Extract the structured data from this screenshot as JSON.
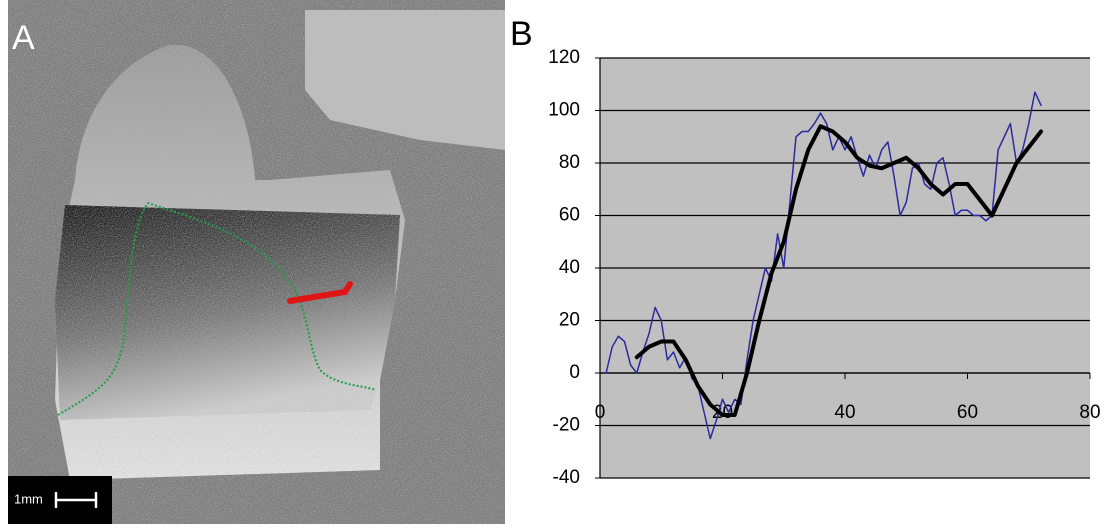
{
  "panel_a": {
    "label": "A",
    "scale_label": "1mm"
  },
  "chart_data": {
    "type": "line",
    "panel_label": "B",
    "xlim": [
      0,
      80
    ],
    "xticks": [
      0,
      20,
      40,
      60,
      80
    ],
    "ylim": [
      -40,
      120
    ],
    "yticks": [
      -40,
      -20,
      0,
      20,
      40,
      60,
      80,
      100,
      120
    ],
    "grid": true,
    "background": "#c0c0c0",
    "series": [
      {
        "color": "#2b2b9e",
        "width": 1.5,
        "x": [
          1,
          2,
          3,
          4,
          5,
          6,
          7,
          8,
          9,
          10,
          11,
          12,
          13,
          14,
          15,
          16,
          17,
          18,
          19,
          20,
          21,
          22,
          23,
          24,
          25,
          26,
          27,
          28,
          29,
          30,
          31,
          32,
          33,
          34,
          35,
          36,
          37,
          38,
          39,
          40,
          41,
          42,
          43,
          44,
          45,
          46,
          47,
          48,
          49,
          50,
          51,
          52,
          53,
          54,
          55,
          56,
          57,
          58,
          59,
          60,
          61,
          62,
          63,
          64,
          65,
          66,
          67,
          68,
          69,
          70,
          71,
          72
        ],
        "values": [
          0,
          10,
          14,
          12,
          3,
          0,
          8,
          15,
          25,
          20,
          5,
          8,
          2,
          6,
          -2,
          -5,
          -15,
          -25,
          -18,
          -10,
          -15,
          -10,
          -12,
          5,
          20,
          30,
          40,
          35,
          53,
          40,
          65,
          90,
          92,
          92,
          95,
          99,
          95,
          85,
          90,
          85,
          90,
          82,
          75,
          83,
          78,
          85,
          88,
          75,
          60,
          65,
          78,
          80,
          72,
          70,
          80,
          82,
          72,
          60,
          62,
          62,
          60,
          60,
          58,
          60,
          85,
          90,
          95,
          80,
          85,
          95,
          107,
          102
        ]
      },
      {
        "color": "#000000",
        "width": 4,
        "x": [
          6,
          8,
          10,
          12,
          14,
          16,
          18,
          20,
          22,
          24,
          26,
          28,
          30,
          32,
          34,
          36,
          38,
          40,
          42,
          44,
          46,
          48,
          50,
          52,
          54,
          56,
          58,
          60,
          62,
          64,
          66,
          68,
          70,
          72
        ],
        "values": [
          6,
          10,
          12,
          12,
          5,
          -5,
          -12,
          -16,
          -16,
          0,
          20,
          38,
          50,
          70,
          85,
          94,
          92,
          88,
          82,
          79,
          78,
          80,
          82,
          78,
          72,
          68,
          72,
          72,
          66,
          60,
          70,
          80,
          86,
          92
        ]
      }
    ]
  }
}
